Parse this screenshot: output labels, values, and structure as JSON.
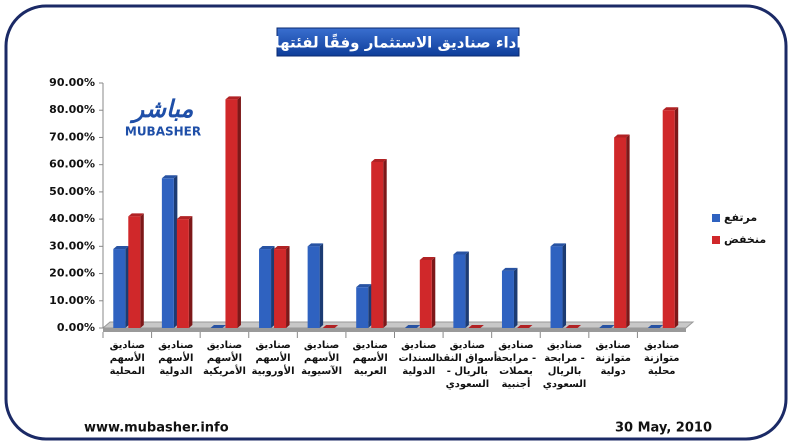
{
  "chart_data": {
    "type": "bar",
    "title": "اداء صناديق الاستثمار وفقًا لفئتها",
    "logo": {
      "arabic": "مباشر",
      "latin": "MUBASHER"
    },
    "footer": {
      "left": "www.mubasher.info",
      "right": "30 May, 2010"
    },
    "categories": [
      [
        "صناديق",
        "الأسهم",
        "المحلية"
      ],
      [
        "صناديق",
        "الأسهم",
        "الدولية"
      ],
      [
        "صناديق",
        "الأسهم",
        "الأمريكية"
      ],
      [
        "صناديق",
        "الأسهم",
        "الأوروبية"
      ],
      [
        "صناديق",
        "الأسهم",
        "الآسيوية"
      ],
      [
        "صناديق",
        "الأسهم",
        "العربية"
      ],
      [
        "صناديق",
        "السندات",
        "الدولية"
      ],
      [
        "صناديق",
        "أسواق النقد",
        "- بالريال",
        "السعودي"
      ],
      [
        "صناديق",
        "مرابحة -",
        "بعملات",
        "أجنبية"
      ],
      [
        "صناديق",
        "مرابحة -",
        "بالريال",
        "السعودي"
      ],
      [
        "صناديق",
        "متوازنة",
        "دولية"
      ],
      [
        "صناديق",
        "متوازنة",
        "محلية"
      ]
    ],
    "series": [
      {
        "name": "مرتفع",
        "color": "#2f62c0",
        "values": [
          29,
          55,
          0,
          29,
          30,
          15,
          0,
          27,
          21,
          30,
          0,
          0
        ]
      },
      {
        "name": "منخفض",
        "color": "#d0282a",
        "values": [
          41,
          40,
          84,
          29,
          0,
          61,
          25,
          0,
          0,
          0,
          70,
          80
        ]
      }
    ],
    "ylim": [
      0,
      90
    ],
    "yticks": [
      {
        "value": 0,
        "label": "0.00%"
      },
      {
        "value": 10,
        "label": "10.00%"
      },
      {
        "value": 20,
        "label": "20.00%"
      },
      {
        "value": 30,
        "label": "30.00%"
      },
      {
        "value": 40,
        "label": "40.00%"
      },
      {
        "value": 50,
        "label": "50.00%"
      },
      {
        "value": 60,
        "label": "60.00%"
      },
      {
        "value": 70,
        "label": "70.00%"
      },
      {
        "value": 80,
        "label": "80.00%"
      },
      {
        "value": 90,
        "label": "90.00%"
      }
    ],
    "grid": false,
    "legend": "right"
  }
}
